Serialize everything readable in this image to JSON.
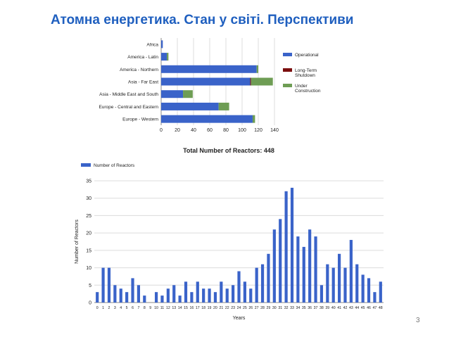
{
  "slide": {
    "title": "Атомна енергетика. Стан у світі. Перспективи",
    "page_number": "3"
  },
  "chart_data": [
    {
      "type": "bar",
      "orientation": "horizontal",
      "stacked": true,
      "categories": [
        "Africa",
        "America - Latin",
        "America - Northern",
        "Asia - Far East",
        "Asia - Middle East and South",
        "Europe - Central and Eastern",
        "Europe - Western"
      ],
      "series": [
        {
          "name": "Operational",
          "color": "#3a63c9",
          "values": [
            2,
            7,
            118,
            110,
            27,
            71,
            113
          ]
        },
        {
          "name": "Long-Term Shutdown",
          "color": "#7a0e0e",
          "values": [
            0,
            0,
            0,
            1,
            0,
            0,
            0
          ]
        },
        {
          "name": "Under Construction",
          "color": "#6e9d54",
          "values": [
            0,
            2,
            2,
            27,
            12,
            13,
            3
          ]
        }
      ],
      "xlim": [
        0,
        140
      ],
      "x_ticks": [
        "0",
        "20",
        "40",
        "60",
        "80",
        "100",
        "120",
        "140"
      ],
      "grid": true,
      "legend_position": "right"
    },
    {
      "type": "bar",
      "title": "Total Number of Reactors: 448",
      "series": [
        {
          "name": "Number of Reactors",
          "color": "#3a63c9"
        }
      ],
      "categories": [
        "0",
        "1",
        "2",
        "3",
        "4",
        "5",
        "6",
        "7",
        "8",
        "9",
        "10",
        "11",
        "12",
        "13",
        "14",
        "15",
        "16",
        "17",
        "18",
        "19",
        "20",
        "21",
        "22",
        "23",
        "24",
        "25",
        "26",
        "27",
        "28",
        "29",
        "30",
        "31",
        "32",
        "33",
        "34",
        "35",
        "36",
        "37",
        "38",
        "39",
        "40",
        "41",
        "42",
        "43",
        "44",
        "45",
        "46",
        "47",
        "48"
      ],
      "values": [
        3,
        10,
        10,
        5,
        4,
        3,
        7,
        5,
        2,
        0,
        3,
        2,
        4,
        5,
        2,
        6,
        3,
        6,
        4,
        4,
        3,
        6,
        4,
        5,
        9,
        6,
        4,
        10,
        11,
        14,
        21,
        24,
        32,
        33,
        19,
        16,
        21,
        19,
        5,
        11,
        10,
        14,
        10,
        18,
        11,
        8,
        7,
        3,
        6
      ],
      "xlabel": "Years",
      "ylabel": "Number of Reactors",
      "ylim": [
        0,
        35
      ],
      "y_ticks": [
        "0",
        "5",
        "10",
        "15",
        "20",
        "25",
        "30",
        "35"
      ],
      "grid": true,
      "legend_position": "top-left"
    }
  ]
}
